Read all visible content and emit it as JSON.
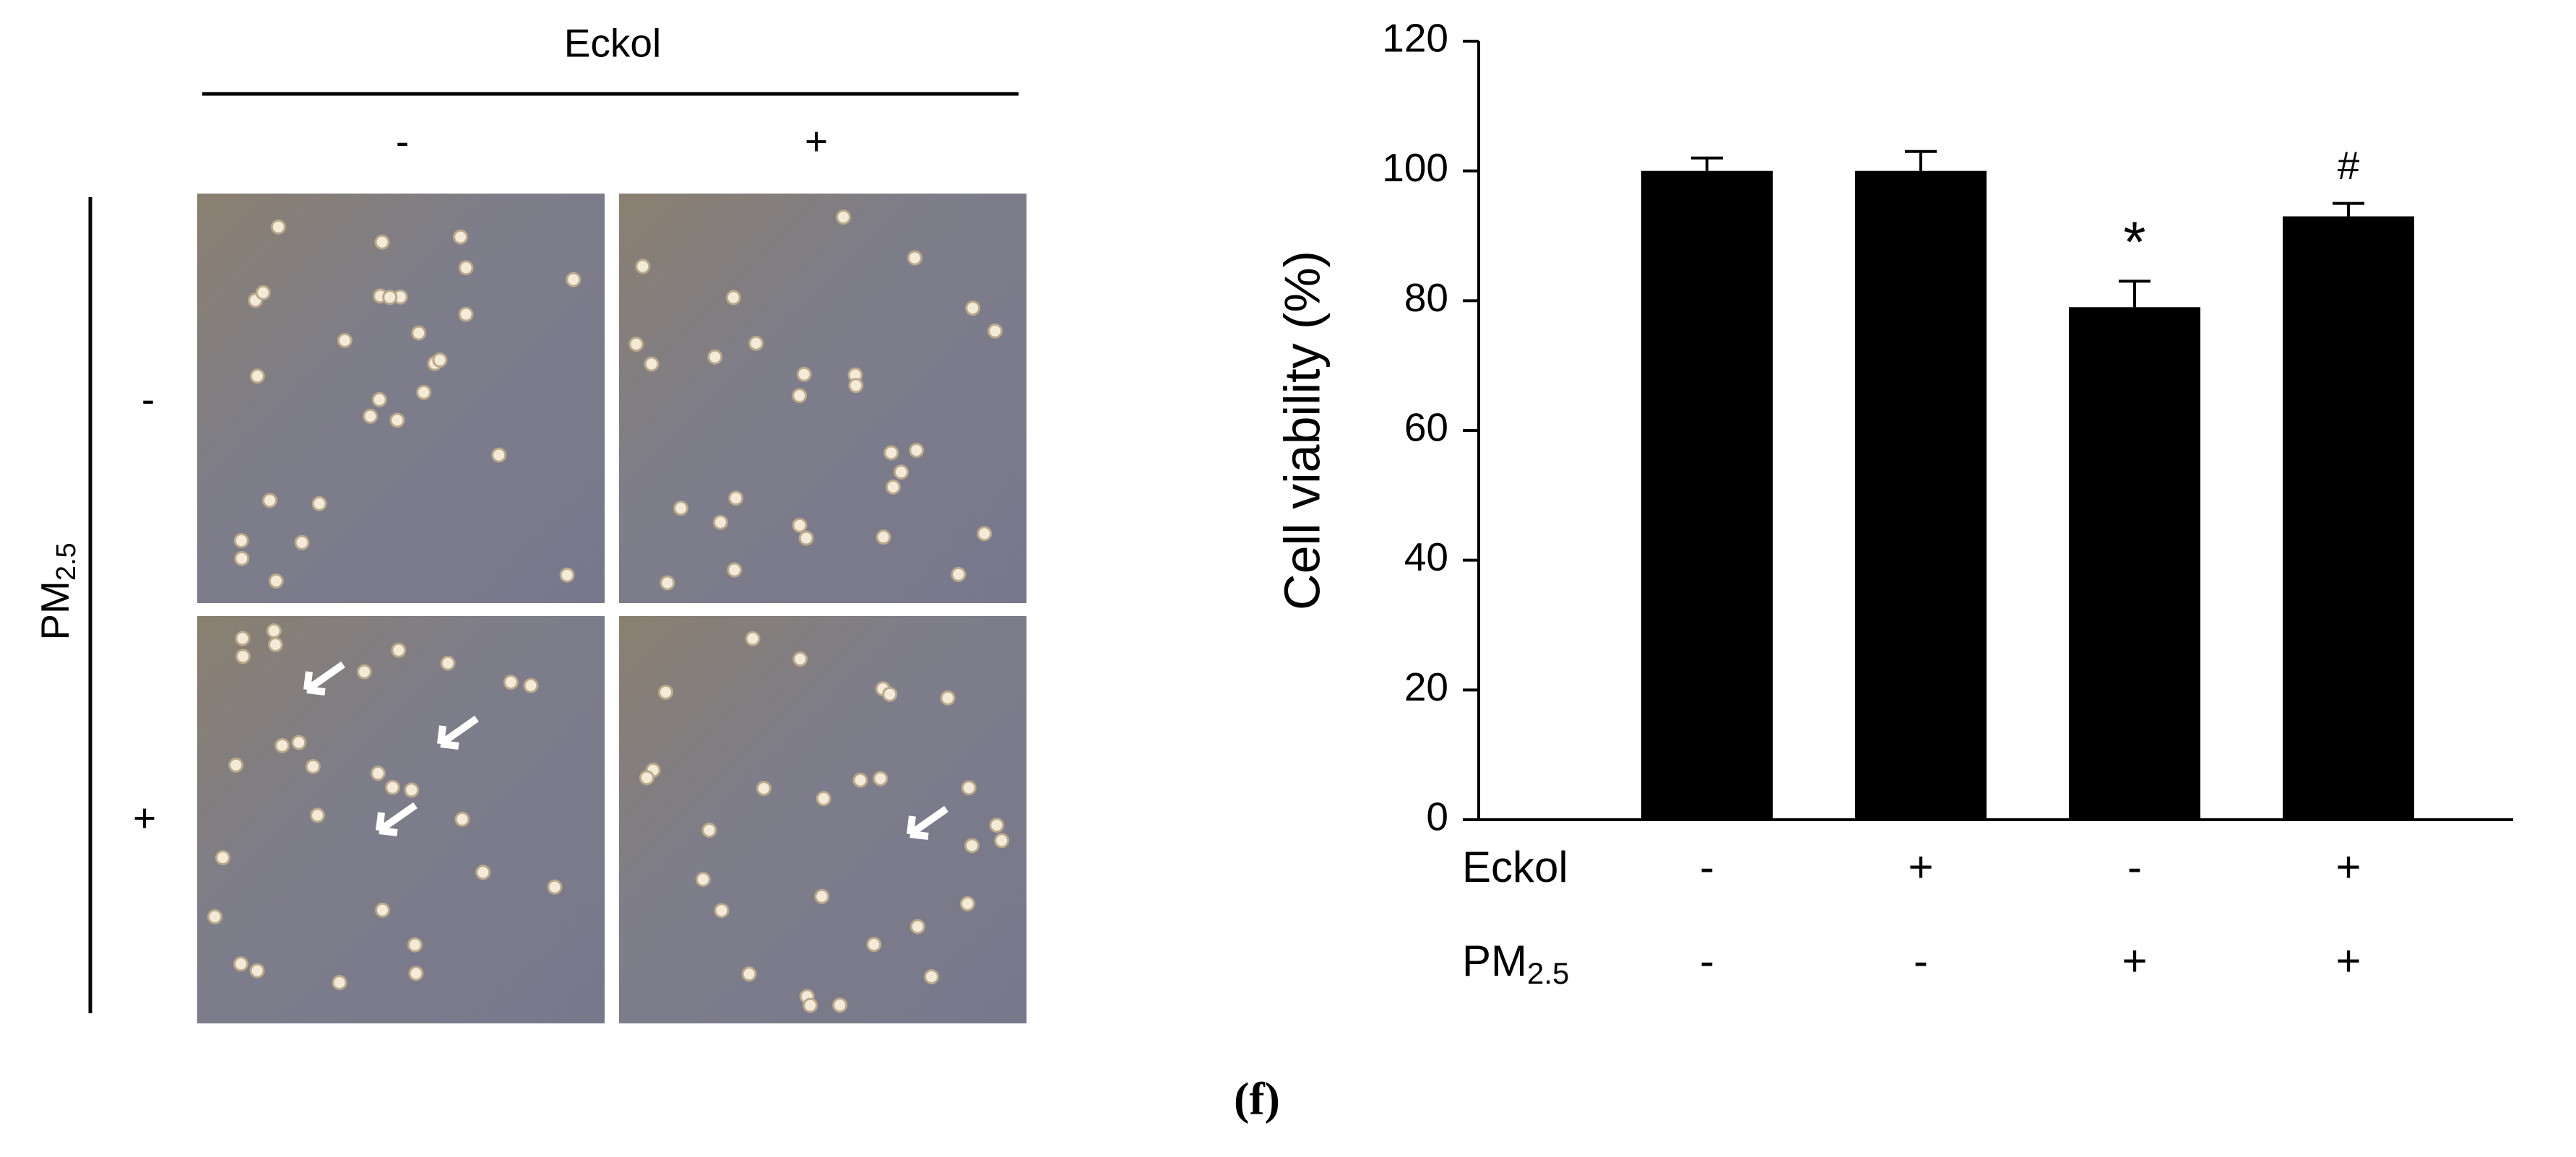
{
  "micrograph_panel": {
    "column_header": "Eckol",
    "columns": [
      "-",
      "+"
    ],
    "row_header": "PM",
    "row_header_sub": "2.5",
    "rows": [
      "-",
      "+"
    ]
  },
  "chart_data": {
    "type": "bar",
    "ylabel": "Cell viability (%)",
    "categories": [
      null,
      null,
      null,
      null
    ],
    "values": [
      100,
      100,
      79,
      93
    ],
    "errors": [
      2,
      3,
      4,
      2
    ],
    "value_annotations": [
      null,
      null,
      "*",
      "#"
    ],
    "color": "#000000",
    "ylim": [
      0,
      120
    ],
    "yticks": [
      0,
      20,
      40,
      60,
      80,
      100,
      120
    ],
    "grid": false,
    "condition_rows": [
      {
        "name": "Eckol",
        "labels": [
          "-",
          "+",
          "-",
          "+"
        ]
      },
      {
        "name": "PM",
        "name_sub": "2.5",
        "labels": [
          "-",
          "-",
          "+",
          "+"
        ]
      }
    ]
  },
  "caption": "(f)"
}
